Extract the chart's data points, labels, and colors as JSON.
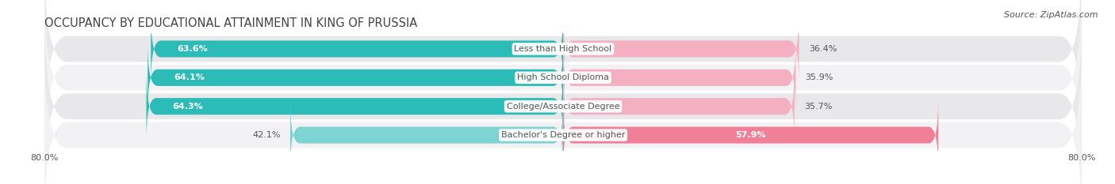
{
  "title": "OCCUPANCY BY EDUCATIONAL ATTAINMENT IN KING OF PRUSSIA",
  "source": "Source: ZipAtlas.com",
  "categories": [
    "Less than High School",
    "High School Diploma",
    "College/Associate Degree",
    "Bachelor's Degree or higher"
  ],
  "owner_pct": [
    63.6,
    64.1,
    64.3,
    42.1
  ],
  "renter_pct": [
    36.4,
    35.9,
    35.7,
    57.9
  ],
  "owner_color": "#2bbcb8",
  "owner_light_color": "#7dd4d2",
  "renter_color": "#f08098",
  "renter_light_color": "#f4afc0",
  "row_bg_color": "#e8e8eb",
  "row_alt_color": "#f2f2f5",
  "x_min": -80,
  "x_max": 80,
  "title_fontsize": 10.5,
  "source_fontsize": 8,
  "label_fontsize": 8,
  "tick_fontsize": 8,
  "legend_fontsize": 8,
  "bar_height": 0.58,
  "title_color": "#444444",
  "text_color": "#555555",
  "category_label_fontsize": 8
}
